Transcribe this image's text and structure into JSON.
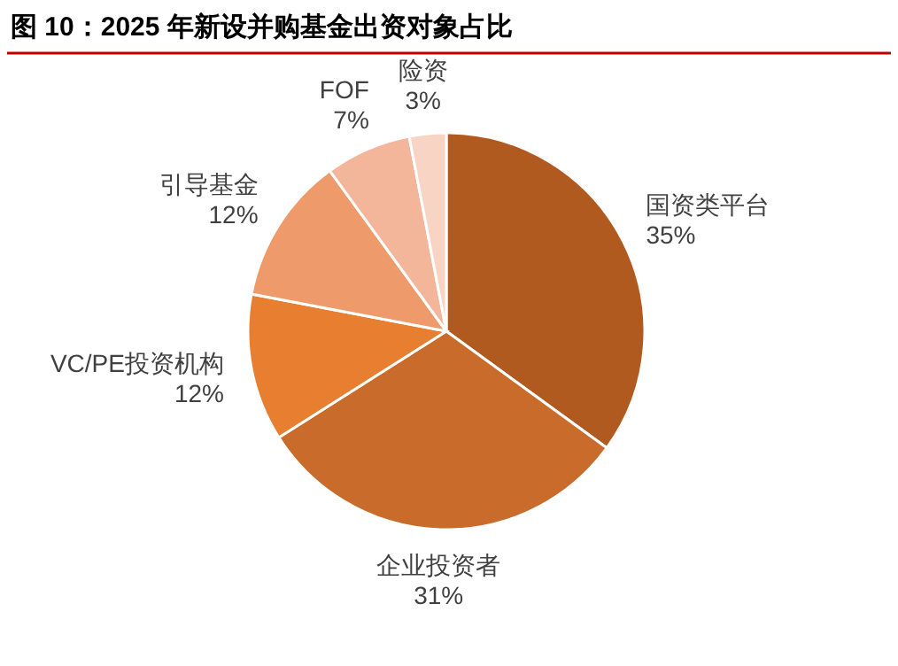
{
  "chart_data": {
    "type": "pie",
    "title": "图 10：2025 年新设并购基金出资对象占比",
    "categories": [
      "国资类平台",
      "企业投资者",
      "VC/PE投资机构",
      "引导基金",
      "FOF",
      "险资"
    ],
    "values": [
      35,
      31,
      12,
      12,
      7,
      3
    ],
    "colors": [
      "#b05a20",
      "#c96b2b",
      "#e77e30",
      "#ee9a6b",
      "#f3b69a",
      "#f7d4c3"
    ],
    "value_labels": [
      "35%",
      "31%",
      "12%",
      "12%",
      "7%",
      "3%"
    ]
  }
}
